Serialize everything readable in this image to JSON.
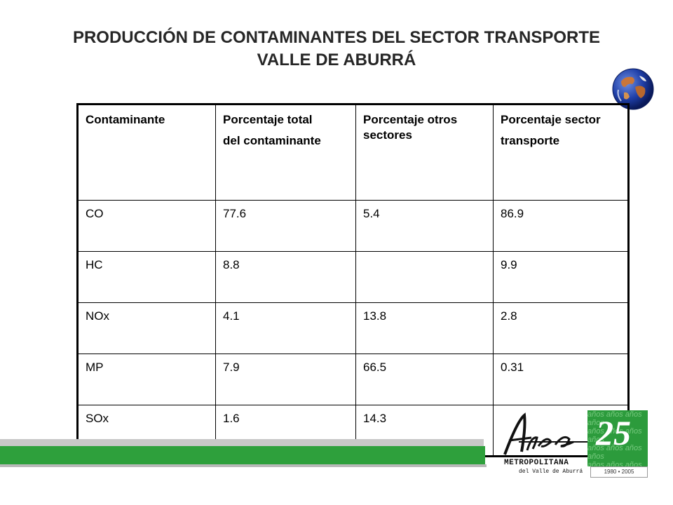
{
  "title": {
    "line1": "PRODUCCIÓN DE CONTAMINANTES DEL SECTOR TRANSPORTE",
    "line2": "VALLE DE ABURRÁ"
  },
  "table": {
    "headers": [
      {
        "line1": "Contaminante",
        "line2": ""
      },
      {
        "line1": "Porcentaje total",
        "line2": "del contaminante"
      },
      {
        "line1": "Porcentaje otros sectores",
        "line2": ""
      },
      {
        "line1": "Porcentaje sector",
        "line2": "transporte"
      }
    ],
    "rows": [
      [
        "CO",
        "77.6",
        "5.4",
        "86.9"
      ],
      [
        "HC",
        "8.8",
        "",
        "9.9"
      ],
      [
        "NOx",
        "4.1",
        "13.8",
        "2.8"
      ],
      [
        "MP",
        "7.9",
        "66.5",
        "0.31"
      ],
      [
        "SOx",
        "1.6",
        "14.3",
        ""
      ]
    ]
  },
  "logo": {
    "script_text": "Área",
    "name": "METROPOLITANA",
    "subtitle": "del Valle de Aburrá",
    "anniversary_number": "25",
    "anniversary_word": "años",
    "anniversary_years": "1980 • 2005"
  },
  "colors": {
    "title": "#262626",
    "green_bar": "#2ea03c",
    "gray_bar": "#c8c8c8",
    "anniversary_green": "#2c9b3c"
  },
  "icons": [
    "globe-icon"
  ]
}
